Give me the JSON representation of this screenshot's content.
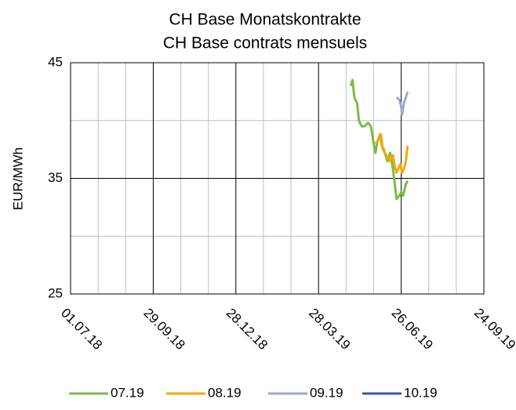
{
  "chart_data": {
    "type": "line",
    "title": [
      "CH Base Monatskontrakte",
      "CH Base contrats mensuels"
    ],
    "y_label": "EUR/MWh",
    "xlim": [
      "2018-07-01",
      "2019-09-24"
    ],
    "xticks": [
      {
        "value": "2018-07-01",
        "label": "01.07.18"
      },
      {
        "value": "2018-09-29",
        "label": "29.09.18"
      },
      {
        "value": "2018-12-28",
        "label": "28.12.18"
      },
      {
        "value": "2019-03-28",
        "label": "28.03.19"
      },
      {
        "value": "2019-06-26",
        "label": "26.06.19"
      },
      {
        "value": "2019-09-24",
        "label": "24.09.19"
      }
    ],
    "ylim": [
      25,
      45
    ],
    "yticks": [
      25,
      35,
      45
    ],
    "grid": true,
    "series": [
      {
        "name": "07.19",
        "color": "#7cbb45",
        "x": [
          "2019-05-02",
          "2019-05-04",
          "2019-05-06",
          "2019-05-09",
          "2019-05-11",
          "2019-05-14",
          "2019-05-17",
          "2019-05-21",
          "2019-05-24",
          "2019-05-27",
          "2019-05-29",
          "2019-05-31",
          "2019-06-03",
          "2019-06-05",
          "2019-06-07",
          "2019-06-11",
          "2019-06-14",
          "2019-06-17",
          "2019-06-19",
          "2019-06-21",
          "2019-06-24",
          "2019-06-26",
          "2019-06-28",
          "2019-07-01",
          "2019-07-03"
        ],
        "values": [
          43,
          43.5,
          42,
          41.5,
          40,
          39.5,
          39.5,
          39.8,
          39.5,
          38,
          37.2,
          38.2,
          38.8,
          37.8,
          37.5,
          36.5,
          37.2,
          35.8,
          34.5,
          33.2,
          33.5,
          33.8,
          33.5,
          34.5,
          34.8
        ]
      },
      {
        "name": "08.19",
        "color": "#f5a800",
        "x": [
          "2019-05-29",
          "2019-06-01",
          "2019-06-04",
          "2019-06-06",
          "2019-06-10",
          "2019-06-13",
          "2019-06-17",
          "2019-06-19",
          "2019-06-21",
          "2019-06-25",
          "2019-06-27",
          "2019-06-29",
          "2019-07-01",
          "2019-07-03"
        ],
        "values": [
          38,
          38.3,
          38.8,
          37.5,
          37,
          36.5,
          37,
          36,
          35.5,
          36.2,
          35.5,
          35.8,
          36.5,
          37.8
        ]
      },
      {
        "name": "09.19",
        "color": "#98a9cf",
        "x": [
          "2019-06-21",
          "2019-06-24",
          "2019-06-26",
          "2019-06-27",
          "2019-06-29",
          "2019-07-01",
          "2019-07-03"
        ],
        "values": [
          42,
          41.8,
          41.2,
          40.5,
          41.5,
          42,
          42.5
        ]
      },
      {
        "name": "10.19",
        "color": "#3f55a5",
        "x": [],
        "values": []
      }
    ]
  }
}
